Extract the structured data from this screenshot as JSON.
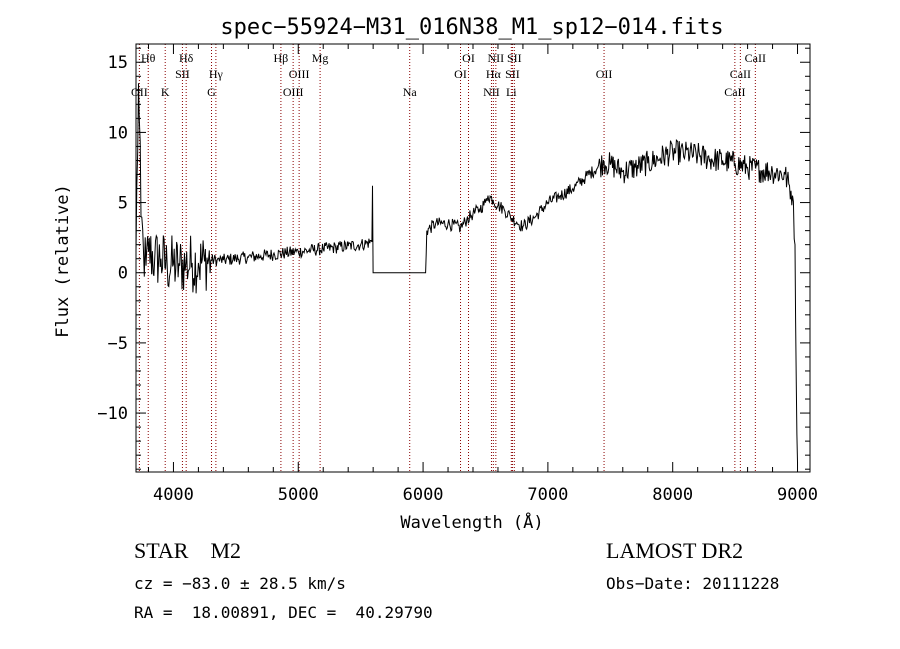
{
  "chart_data": {
    "type": "line",
    "title": "spec−55924−M31_016N38_M1_sp12−014.fits",
    "xlabel": "Wavelength (Å)",
    "ylabel": "Flux (relative)",
    "xlim": [
      3700,
      9100
    ],
    "ylim": [
      -14.2,
      16.3
    ],
    "xticks": [
      4000,
      5000,
      6000,
      7000,
      8000,
      9000
    ],
    "yticks": [
      -10,
      -5,
      0,
      5,
      10,
      15
    ],
    "ytick_labels": [
      "−10",
      "−5",
      "0",
      "5",
      "10",
      "15"
    ],
    "line_color": "#000000",
    "marker_color": "#8b0000",
    "grid": false,
    "spectrum": {
      "wavelength": [
        3700,
        3720,
        3740,
        3760,
        3780,
        3800,
        3850,
        3900,
        3950,
        4000,
        4050,
        4100,
        4150,
        4200,
        4250,
        4300,
        4350,
        4400,
        4500,
        4600,
        4700,
        4800,
        4900,
        5000,
        5100,
        5200,
        5300,
        5400,
        5500,
        5590,
        5595,
        5600,
        5605,
        6020,
        6030,
        6100,
        6200,
        6300,
        6350,
        6400,
        6450,
        6500,
        6520,
        6560,
        6600,
        6650,
        6700,
        6750,
        6800,
        6900,
        7000,
        7100,
        7200,
        7300,
        7400,
        7450,
        7500,
        7600,
        7700,
        7800,
        7900,
        8000,
        8100,
        8200,
        8300,
        8400,
        8500,
        8600,
        8700,
        8800,
        8900,
        8960,
        8980,
        8990,
        9000
      ],
      "flux": [
        1.5,
        13.5,
        4,
        1.5,
        0.5,
        1.5,
        1,
        1,
        0.5,
        0.6,
        0.5,
        0.6,
        0.7,
        0.7,
        0.8,
        0.9,
        0.9,
        0.9,
        1.0,
        1.1,
        1.2,
        1.3,
        1.4,
        1.5,
        1.6,
        1.7,
        1.8,
        1.9,
        2.0,
        2.2,
        6.2,
        0,
        0,
        0,
        3.0,
        3.5,
        3.5,
        3.2,
        3.8,
        4.2,
        4.5,
        5.0,
        5.5,
        5.2,
        4.8,
        4.5,
        4.0,
        3.6,
        3.3,
        4.0,
        5.0,
        5.5,
        6.0,
        6.8,
        7.5,
        7.9,
        7.7,
        7.2,
        7.5,
        7.8,
        8.2,
        8.6,
        8.5,
        8.4,
        8.1,
        8.0,
        7.8,
        7.5,
        7.3,
        7.2,
        7.0,
        5.5,
        2.0,
        -8.0,
        -13.5
      ]
    },
    "lines": [
      {
        "wave": 3727,
        "label": "OII",
        "row": 3
      },
      {
        "wave": 3798,
        "label": "Hθ",
        "row": 1
      },
      {
        "wave": 3934,
        "label": "K",
        "row": 3
      },
      {
        "wave": 4072,
        "label": "SII",
        "row": 2
      },
      {
        "wave": 4102,
        "label": "Hδ",
        "row": 1
      },
      {
        "wave": 4305,
        "label": "G",
        "row": 3
      },
      {
        "wave": 4340,
        "label": "Hγ",
        "row": 2
      },
      {
        "wave": 4861,
        "label": "Hβ",
        "row": 1
      },
      {
        "wave": 4959,
        "label": "OIII",
        "row": 3
      },
      {
        "wave": 5007,
        "label": "OIII",
        "row": 2
      },
      {
        "wave": 5175,
        "label": "Mg",
        "row": 1
      },
      {
        "wave": 5893,
        "label": "Na",
        "row": 3
      },
      {
        "wave": 6300,
        "label": "OI",
        "row": 2
      },
      {
        "wave": 6364,
        "label": "OI",
        "row": 1
      },
      {
        "wave": 6548,
        "label": "NII",
        "row": 3
      },
      {
        "wave": 6563,
        "label": "Hα",
        "row": 2
      },
      {
        "wave": 6583,
        "label": "NII",
        "row": 1
      },
      {
        "wave": 6707,
        "label": "Li",
        "row": 3
      },
      {
        "wave": 6716,
        "label": "SII",
        "row": 2
      },
      {
        "wave": 6731,
        "label": "SII",
        "row": 1
      },
      {
        "wave": 7450,
        "label": "OII",
        "row": 2
      },
      {
        "wave": 8498,
        "label": "CaII",
        "row": 3
      },
      {
        "wave": 8542,
        "label": "CaII",
        "row": 2
      },
      {
        "wave": 8662,
        "label": "CaII",
        "row": 1
      }
    ]
  },
  "info": {
    "class_text": "STAR    M2",
    "survey_text": "LAMOST DR2",
    "cz_text": "cz = −83.0 ± 28.5 km/s",
    "obsdate_text": "Obs−Date: 20111228",
    "radec_text": "RA =  18.00891, DEC =  40.29790"
  }
}
